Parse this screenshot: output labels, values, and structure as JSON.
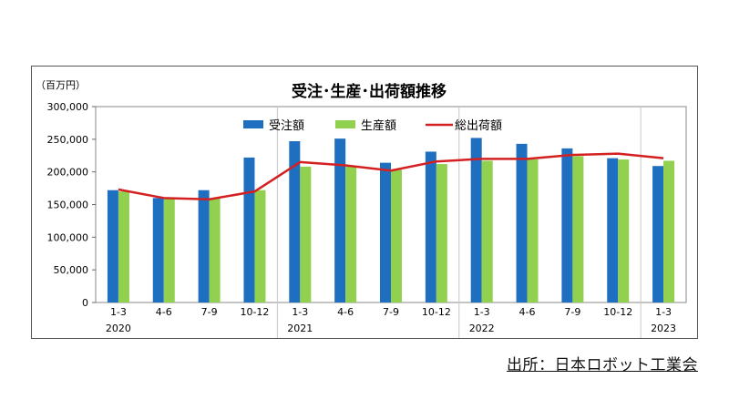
{
  "chart_data": {
    "type": "bar",
    "title": "受注･生産･出荷額推移",
    "ylabel": "（百万円）",
    "ylim": [
      0,
      300000
    ],
    "yticks": [
      "0",
      "50,000",
      "100,000",
      "150,000",
      "200,000",
      "250,000",
      "300,000"
    ],
    "ytick_values": [
      0,
      50000,
      100000,
      150000,
      200000,
      250000,
      300000
    ],
    "categories": [
      "1-3",
      "4-6",
      "7-9",
      "10-12",
      "1-3",
      "4-6",
      "7-9",
      "10-12",
      "1-3",
      "4-6",
      "7-9",
      "10-12",
      "1-3"
    ],
    "years": [
      {
        "label": "2020",
        "index": 0
      },
      {
        "label": "2021",
        "index": 4
      },
      {
        "label": "2022",
        "index": 8
      },
      {
        "label": "2023",
        "index": 12
      }
    ],
    "series": [
      {
        "name": "受注額",
        "type": "bar",
        "color": "#1f6fc1",
        "values": [
          172000,
          160000,
          172000,
          222000,
          247000,
          251000,
          214000,
          231000,
          252000,
          243000,
          236000,
          221000,
          209000
        ]
      },
      {
        "name": "生産額",
        "type": "bar",
        "color": "#92d050",
        "values": [
          170000,
          159000,
          159000,
          172000,
          208000,
          208000,
          203000,
          212000,
          217000,
          219000,
          224000,
          219000,
          217000
        ]
      },
      {
        "name": "総出荷額",
        "type": "line",
        "color": "#d42020",
        "values": [
          173000,
          160000,
          158000,
          170000,
          215000,
          210000,
          202000,
          216000,
          220000,
          220000,
          226000,
          228000,
          221000
        ]
      }
    ],
    "legend_position": "top-center",
    "grid": false
  },
  "source": "出所：日本ロボット工業会"
}
